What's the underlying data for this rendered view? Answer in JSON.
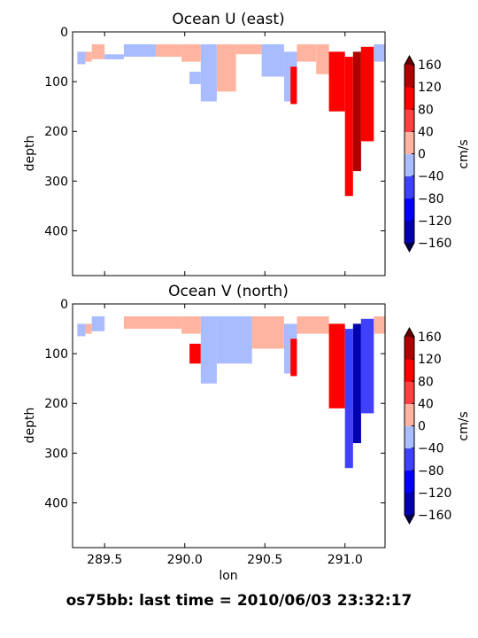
{
  "figure": {
    "suptitle": "os75bb: last time = 2010/06/03 23:32:17"
  },
  "colorbar": {
    "label": "cm/s",
    "ticks": [
      -160,
      -120,
      -80,
      -40,
      0,
      40,
      80,
      120,
      160
    ],
    "tick_labels": [
      "−160",
      "−120",
      "−80",
      "−40",
      "0",
      "40",
      "80",
      "120",
      "160"
    ],
    "colors": [
      "#0000b0",
      "#0000ff",
      "#4040ff",
      "#a8bcff",
      "#ffb4a0",
      "#ff4040",
      "#ff0000",
      "#b00000",
      "#600000",
      "#00004c"
    ]
  },
  "chart_data": [
    {
      "type": "heatmap",
      "title": "Ocean U (east)",
      "xlabel": "",
      "ylabel": "depth",
      "xlim": [
        289.3,
        291.25
      ],
      "ylim": [
        490,
        0
      ],
      "x_ticks": [
        289.5,
        290.0,
        290.5,
        291.0
      ],
      "x_tick_labels": [],
      "y_ticks": [
        0,
        100,
        200,
        300,
        400
      ],
      "y_tick_labels": [
        "0",
        "100",
        "200",
        "300",
        "400"
      ],
      "cells": [
        {
          "x": [
            289.33,
            289.38
          ],
          "depth": [
            40,
            65
          ],
          "value": -30
        },
        {
          "x": [
            289.38,
            289.42
          ],
          "depth": [
            40,
            60
          ],
          "value": 30
        },
        {
          "x": [
            289.42,
            289.5
          ],
          "depth": [
            25,
            55
          ],
          "value": 25
        },
        {
          "x": [
            289.5,
            289.62
          ],
          "depth": [
            45,
            55
          ],
          "value": -25
        },
        {
          "x": [
            289.62,
            289.82
          ],
          "depth": [
            25,
            50
          ],
          "value": -20
        },
        {
          "x": [
            289.82,
            289.98
          ],
          "depth": [
            25,
            50
          ],
          "value": 25
        },
        {
          "x": [
            289.98,
            290.1
          ],
          "depth": [
            25,
            60
          ],
          "value": 20
        },
        {
          "x": [
            290.03,
            290.1
          ],
          "depth": [
            80,
            105
          ],
          "value": -30
        },
        {
          "x": [
            290.1,
            290.2
          ],
          "depth": [
            25,
            140
          ],
          "value": -25
        },
        {
          "x": [
            290.2,
            290.32
          ],
          "depth": [
            25,
            120
          ],
          "value": 25
        },
        {
          "x": [
            290.32,
            290.48
          ],
          "depth": [
            25,
            45
          ],
          "value": 20
        },
        {
          "x": [
            290.48,
            290.62
          ],
          "depth": [
            25,
            90
          ],
          "value": -25
        },
        {
          "x": [
            290.62,
            290.7
          ],
          "depth": [
            40,
            140
          ],
          "value": -20
        },
        {
          "x": [
            290.66,
            290.7
          ],
          "depth": [
            70,
            145
          ],
          "value": 90
        },
        {
          "x": [
            290.7,
            290.82
          ],
          "depth": [
            25,
            60
          ],
          "value": 25
        },
        {
          "x": [
            290.82,
            290.9
          ],
          "depth": [
            25,
            85
          ],
          "value": 20
        },
        {
          "x": [
            290.9,
            291.0
          ],
          "depth": [
            40,
            160
          ],
          "value": 100
        },
        {
          "x": [
            291.0,
            291.05
          ],
          "depth": [
            50,
            330
          ],
          "value": 110
        },
        {
          "x": [
            291.05,
            291.1
          ],
          "depth": [
            40,
            280
          ],
          "value": 140
        },
        {
          "x": [
            291.1,
            291.18
          ],
          "depth": [
            30,
            220
          ],
          "value": 90
        },
        {
          "x": [
            291.18,
            291.25
          ],
          "depth": [
            25,
            60
          ],
          "value": -20
        }
      ]
    },
    {
      "type": "heatmap",
      "title": "Ocean V (north)",
      "xlabel": "lon",
      "ylabel": "depth",
      "xlim": [
        289.3,
        291.25
      ],
      "ylim": [
        490,
        0
      ],
      "x_ticks": [
        289.5,
        290.0,
        290.5,
        291.0
      ],
      "x_tick_labels": [
        "289.5",
        "290.0",
        "290.5",
        "291.0"
      ],
      "y_ticks": [
        0,
        100,
        200,
        300,
        400
      ],
      "y_tick_labels": [
        "0",
        "100",
        "200",
        "300",
        "400"
      ],
      "cells": [
        {
          "x": [
            289.33,
            289.38
          ],
          "depth": [
            40,
            65
          ],
          "value": -30
        },
        {
          "x": [
            289.38,
            289.42
          ],
          "depth": [
            40,
            60
          ],
          "value": 30
        },
        {
          "x": [
            289.42,
            289.5
          ],
          "depth": [
            25,
            55
          ],
          "value": -20
        },
        {
          "x": [
            289.62,
            289.98
          ],
          "depth": [
            25,
            50
          ],
          "value": 25
        },
        {
          "x": [
            289.98,
            290.1
          ],
          "depth": [
            25,
            60
          ],
          "value": 20
        },
        {
          "x": [
            290.03,
            290.1
          ],
          "depth": [
            80,
            120
          ],
          "value": 80
        },
        {
          "x": [
            290.1,
            290.2
          ],
          "depth": [
            25,
            160
          ],
          "value": -25
        },
        {
          "x": [
            290.2,
            290.42
          ],
          "depth": [
            25,
            120
          ],
          "value": -30
        },
        {
          "x": [
            290.42,
            290.62
          ],
          "depth": [
            25,
            90
          ],
          "value": 25
        },
        {
          "x": [
            290.62,
            290.7
          ],
          "depth": [
            40,
            140
          ],
          "value": -25
        },
        {
          "x": [
            290.66,
            290.7
          ],
          "depth": [
            70,
            145
          ],
          "value": 90
        },
        {
          "x": [
            290.7,
            290.9
          ],
          "depth": [
            25,
            60
          ],
          "value": 20
        },
        {
          "x": [
            290.9,
            291.0
          ],
          "depth": [
            40,
            210
          ],
          "value": 100
        },
        {
          "x": [
            291.0,
            291.05
          ],
          "depth": [
            50,
            330
          ],
          "value": -60
        },
        {
          "x": [
            291.05,
            291.1
          ],
          "depth": [
            40,
            280
          ],
          "value": -140
        },
        {
          "x": [
            291.1,
            291.18
          ],
          "depth": [
            30,
            220
          ],
          "value": -60
        },
        {
          "x": [
            291.18,
            291.25
          ],
          "depth": [
            25,
            60
          ],
          "value": 25
        }
      ]
    }
  ]
}
